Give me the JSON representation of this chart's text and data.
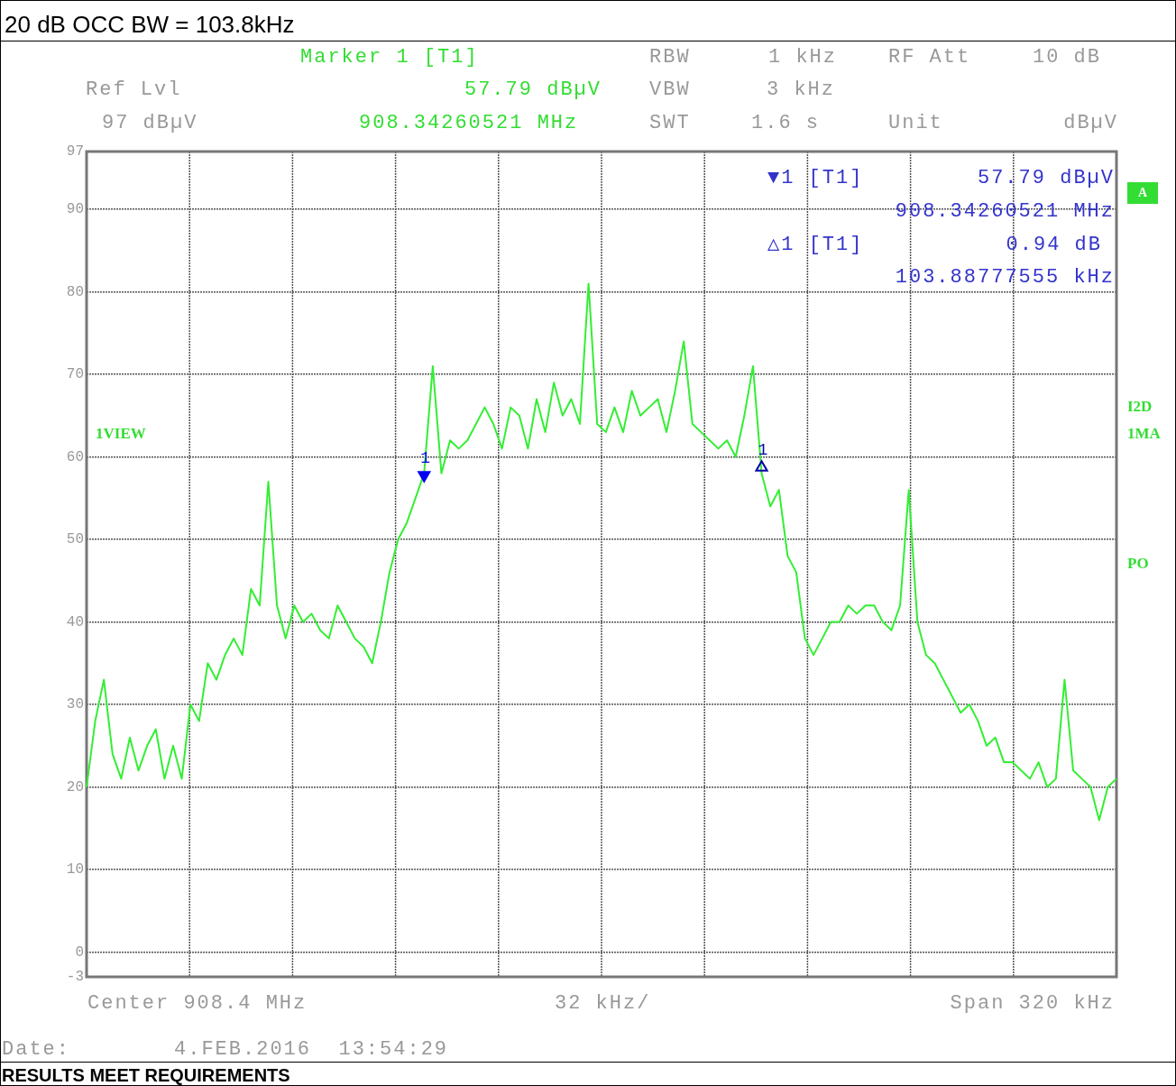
{
  "chart_data": {
    "type": "line",
    "title": "20 dB OCC BW = 103.8kHz",
    "categories": [
      null,
      null,
      null,
      null,
      null,
      null,
      null,
      null,
      null,
      null,
      null,
      null,
      null,
      null,
      null,
      null,
      null,
      null,
      null,
      null,
      null,
      null,
      null,
      null,
      null,
      null,
      null,
      null,
      null,
      null,
      null,
      null,
      null,
      null,
      null,
      null,
      null,
      null,
      null,
      null,
      null,
      null,
      null,
      null,
      null,
      null,
      null,
      null,
      null,
      null,
      null,
      null,
      null,
      null,
      null,
      null,
      null,
      null,
      null,
      null,
      null,
      null,
      null,
      null,
      null,
      null,
      null,
      null,
      null,
      null,
      null,
      null,
      null,
      null,
      null,
      null,
      null,
      null,
      null,
      null,
      null,
      null,
      null,
      null,
      null,
      null,
      null,
      null,
      null,
      null,
      null,
      null,
      null,
      null,
      null,
      null,
      null,
      null,
      null,
      null,
      null,
      null,
      null,
      null,
      null,
      null,
      null,
      null,
      null,
      null,
      null,
      null,
      null,
      null,
      null,
      null,
      null,
      null,
      null,
      null
    ],
    "series": [
      {
        "color": "#33ee33",
        "values": [
          20,
          28,
          33,
          24,
          21,
          26,
          22,
          25,
          27,
          21,
          25,
          21,
          30,
          28,
          35,
          33,
          36,
          38,
          36,
          44,
          42,
          57,
          42,
          38,
          42,
          40,
          41,
          39,
          38,
          42,
          40,
          38,
          37,
          35,
          40,
          46,
          50,
          52,
          55,
          58,
          71,
          58,
          62,
          61,
          62,
          64,
          66,
          64,
          61,
          66,
          65,
          61,
          67,
          63,
          69,
          65,
          67,
          64,
          81,
          64,
          63,
          66,
          63,
          68,
          65,
          66,
          67,
          63,
          68,
          74,
          64,
          63,
          62,
          61,
          62,
          60,
          65,
          71,
          58,
          54,
          56,
          48,
          46,
          38,
          36,
          38,
          40,
          40,
          42,
          41,
          42,
          42,
          40,
          39,
          42,
          56,
          40,
          36,
          35,
          33,
          31,
          29,
          30,
          28,
          25,
          26,
          23,
          23,
          22,
          21,
          23,
          20,
          21,
          33,
          22,
          21,
          20,
          16,
          20,
          21
        ]
      },
      {
        "name": "1",
        "type": "scatter",
        "marker": "triangle",
        "color": "#0000ee",
        "values": [
          null,
          null,
          null,
          null,
          null,
          null,
          null,
          null,
          null,
          null,
          null,
          null,
          null,
          null,
          null,
          null,
          null,
          null,
          null,
          null,
          null,
          null,
          null,
          null,
          null,
          null,
          null,
          null,
          null,
          null,
          null,
          null,
          null,
          null,
          null,
          null,
          null,
          null,
          null,
          57.79,
          null,
          null,
          null,
          null,
          null,
          null,
          null,
          null,
          null,
          null,
          null,
          null,
          null,
          null,
          null,
          null,
          null,
          null,
          null,
          null,
          null,
          null,
          null,
          null,
          null,
          null,
          null,
          null,
          null,
          null,
          null,
          null,
          null,
          null,
          null,
          null,
          null,
          null,
          null,
          null,
          null,
          null,
          null,
          null,
          null,
          null,
          null,
          null,
          null,
          null,
          null,
          null,
          null,
          null,
          null,
          null,
          null,
          null,
          null,
          null,
          null,
          null,
          null,
          null,
          null,
          null,
          null,
          null,
          null,
          null,
          null,
          null,
          null,
          null,
          null,
          null,
          null,
          null,
          null,
          null
        ]
      },
      {
        "name": "1",
        "type": "scatter",
        "marker": "triangle",
        "color": "#0000aa",
        "values": [
          null,
          null,
          null,
          null,
          null,
          null,
          null,
          null,
          null,
          null,
          null,
          null,
          null,
          null,
          null,
          null,
          null,
          null,
          null,
          null,
          null,
          null,
          null,
          null,
          null,
          null,
          null,
          null,
          null,
          null,
          null,
          null,
          null,
          null,
          null,
          null,
          null,
          null,
          null,
          null,
          null,
          null,
          null,
          null,
          null,
          null,
          null,
          null,
          null,
          null,
          null,
          null,
          null,
          null,
          null,
          null,
          null,
          null,
          null,
          null,
          null,
          null,
          null,
          null,
          null,
          null,
          null,
          null,
          null,
          null,
          null,
          null,
          null,
          null,
          null,
          null,
          null,
          null,
          58.73,
          null,
          null,
          null,
          null,
          null,
          null,
          null,
          null,
          null,
          null,
          null,
          null,
          null,
          null,
          null,
          null,
          null,
          null,
          null,
          null,
          null,
          null,
          null,
          null,
          null,
          null,
          null,
          null,
          null,
          null,
          null,
          null,
          null,
          null,
          null,
          null,
          null,
          null,
          null,
          null,
          null
        ]
      }
    ],
    "ylim": [
      -3,
      97
    ],
    "yticks": [
      -3,
      0,
      10,
      20,
      30,
      40,
      50,
      60,
      70,
      80,
      90,
      97
    ],
    "grid": true,
    "legend": false,
    "annotations": [
      "Marker 1 [T1]",
      "Ref Lvl",
      "57.79 dBµV",
      "97 dBµV",
      "908.34260521 MHz",
      "RBW",
      "1 kHz",
      "VBW",
      "3 kHz",
      "SWT",
      "1.6 s",
      "RF Att",
      "10 dB",
      "Unit",
      "dBµV",
      "Center 908.4 MHz",
      "32 kHz/",
      "Span 320 kHz",
      "Date:",
      "4.FEB.2016  13:54:29",
      "RESULTS MEET REQUIREMENTS",
      "▼1 [T1]",
      "57.79 dBµV",
      "908.34260521 MHz",
      "△1 [T1]",
      "0.94 dB",
      "103.88777555 kHz",
      "1VIEW",
      "A",
      "I2D",
      "1MA",
      "PO"
    ]
  }
}
